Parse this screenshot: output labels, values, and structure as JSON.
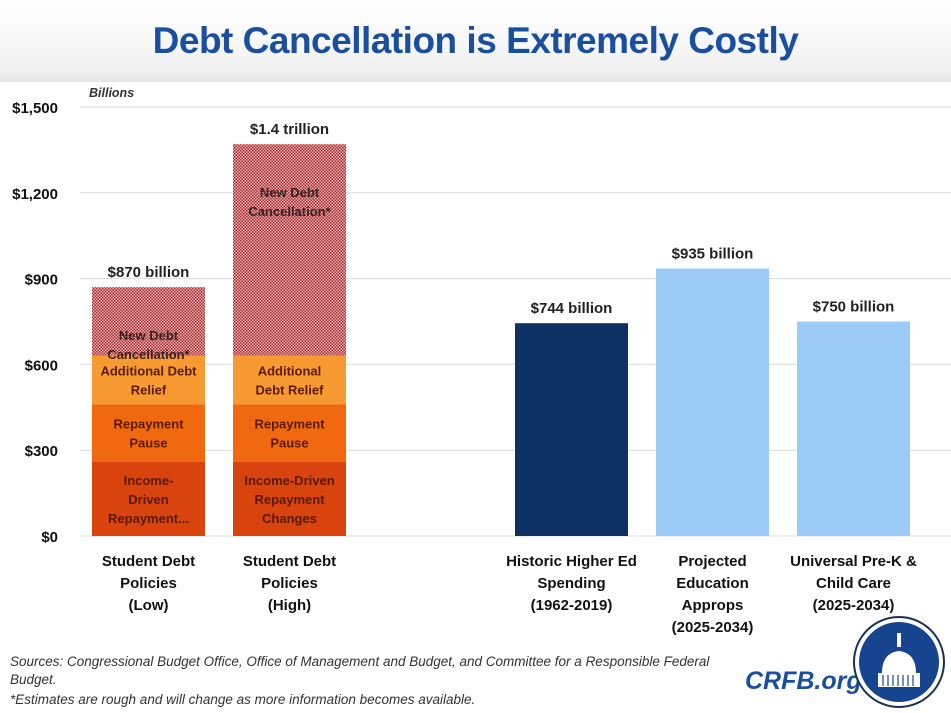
{
  "title": "Debt Cancellation is Extremely Costly",
  "chart_data": {
    "type": "bar",
    "stacked": true,
    "unit_label": "Billions",
    "ylim": [
      0,
      1500
    ],
    "yticks": [
      0,
      300,
      600,
      900,
      1200,
      1500
    ],
    "ytick_labels": [
      "$0",
      "$300",
      "$600",
      "$900",
      "$1,200",
      "$1,500"
    ],
    "grid": true,
    "categories": [
      [
        "Student Debt",
        "Policies",
        "(Low)"
      ],
      [
        "Student Debt",
        "Policies",
        "(High)"
      ],
      [],
      [
        "Historic Higher Ed",
        "Spending",
        "(1962-2019)"
      ],
      [
        "Projected",
        "Education",
        "Approps",
        "(2025-2034)"
      ],
      [
        "Universal Pre-K &",
        "Child Care",
        "(2025-2034)"
      ]
    ],
    "bars": [
      {
        "total_label": "$870 billion",
        "segments": [
          {
            "label": [
              "Income-",
              "Driven",
              "Repayment..."
            ],
            "value": 260,
            "color": "#d9430e"
          },
          {
            "label": [
              "Repayment",
              "Pause"
            ],
            "value": 200,
            "color": "#f0690f"
          },
          {
            "label": [
              "Additional Debt",
              "Relief"
            ],
            "value": 170,
            "color": "#f79a32"
          },
          {
            "label": [
              "New Debt",
              "Cancellation*"
            ],
            "value": 240,
            "color": "#c0504d",
            "pattern": "checker"
          }
        ]
      },
      {
        "total_label": "$1.4 trillion",
        "segments": [
          {
            "label": [
              "Income-Driven",
              "Repayment",
              "Changes"
            ],
            "value": 260,
            "color": "#d9430e"
          },
          {
            "label": [
              "Repayment",
              "Pause"
            ],
            "value": 200,
            "color": "#f0690f"
          },
          {
            "label": [
              "Additional",
              "Debt Relief"
            ],
            "value": 170,
            "color": "#f79a32"
          },
          {
            "label": [
              "New Debt",
              "Cancellation*"
            ],
            "value": 740,
            "color": "#c0504d",
            "pattern": "checker"
          }
        ]
      },
      null,
      {
        "total_label": "$744 billion",
        "segments": [
          {
            "value": 744,
            "color": "#0f3063"
          }
        ]
      },
      {
        "total_label": "$935 billion",
        "segments": [
          {
            "value": 935,
            "color": "#9dcbf7"
          }
        ]
      },
      {
        "total_label": "$750 billion",
        "segments": [
          {
            "value": 750,
            "color": "#9dcbf7"
          }
        ]
      }
    ]
  },
  "footer": {
    "sources": "Sources: Congressional Budget Office, Office of Management and Budget, and Committee for a Responsible Federal",
    "sources_cont": "Budget.",
    "note": "*Estimates are rough and will change as more information becomes available.",
    "brand": "CRFB.org"
  }
}
